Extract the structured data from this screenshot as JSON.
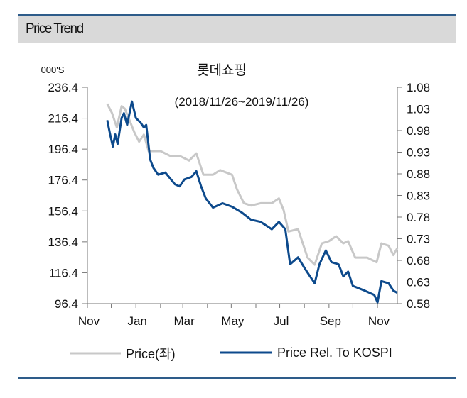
{
  "header": {
    "title": "Price Trend"
  },
  "chart_data": {
    "type": "line",
    "title": "롯데쇼핑",
    "subtitle": "(2018/11/26~2019/11/26)",
    "unit_label": "000'S",
    "x_unit": "days since 2018/11/26",
    "xlim": [
      -25,
      365
    ],
    "x_ticks": [
      -25,
      5,
      36,
      67,
      95,
      126,
      156,
      187,
      217,
      248,
      279,
      309,
      340
    ],
    "x_tick_labels": [
      {
        "x": -25,
        "label": "Nov"
      },
      {
        "x": 36,
        "label": "Jan"
      },
      {
        "x": 95,
        "label": "Mar"
      },
      {
        "x": 156,
        "label": "May"
      },
      {
        "x": 217,
        "label": "Jul"
      },
      {
        "x": 279,
        "label": "Sep"
      },
      {
        "x": 340,
        "label": "Nov"
      }
    ],
    "y_left": {
      "lim": [
        96.4,
        236.4
      ],
      "ticks": [
        "236.4",
        "216.4",
        "196.4",
        "176.4",
        "156.4",
        "136.4",
        "116.4",
        "96.4"
      ]
    },
    "y_right": {
      "lim": [
        0.58,
        1.08
      ],
      "ticks": [
        "1.08",
        "1.03",
        "0.98",
        "0.93",
        "0.88",
        "0.83",
        "0.78",
        "0.73",
        "0.68",
        "0.63",
        "0.58"
      ]
    },
    "series": [
      {
        "name": "Price(좌)",
        "axis": "left",
        "color": "#c8c8c8",
        "x": [
          0,
          6,
          12,
          18,
          22,
          28,
          34,
          40,
          46,
          52,
          67,
          79,
          91,
          103,
          112,
          121,
          133,
          142,
          157,
          163,
          172,
          181,
          193,
          207,
          216,
          222,
          228,
          240,
          252,
          261,
          270,
          279,
          288,
          297,
          303,
          312,
          327,
          339,
          345,
          354,
          360,
          365
        ],
        "y": [
          225.7,
          219.6,
          210.4,
          224.2,
          222.6,
          215.0,
          207.3,
          201.2,
          205.8,
          195.1,
          195.1,
          192.0,
          192.0,
          189.0,
          193.6,
          179.8,
          179.8,
          182.8,
          179.8,
          170.6,
          161.4,
          159.9,
          161.4,
          161.4,
          164.5,
          156.8,
          143.1,
          144.6,
          126.2,
          121.6,
          135.4,
          136.9,
          140.0,
          135.4,
          136.9,
          126.2,
          126.2,
          123.2,
          135.4,
          133.9,
          127.8,
          132.4
        ]
      },
      {
        "name": "Price Rel. To KOSPI",
        "axis": "right",
        "color": "#0d4a8c",
        "x": [
          0,
          3,
          7,
          10,
          13,
          18,
          21,
          25,
          31,
          36,
          42,
          46,
          49,
          54,
          58,
          64,
          73,
          85,
          91,
          97,
          106,
          112,
          118,
          124,
          133,
          145,
          157,
          169,
          181,
          193,
          207,
          216,
          224,
          230,
          240,
          249,
          261,
          267,
          275,
          282,
          291,
          297,
          303,
          309,
          324,
          336,
          340,
          345,
          354,
          360,
          365
        ],
        "y": [
          1.004,
          0.976,
          0.943,
          0.971,
          0.949,
          1.009,
          1.02,
          0.993,
          1.047,
          1.009,
          0.998,
          0.987,
          0.993,
          0.913,
          0.894,
          0.878,
          0.883,
          0.856,
          0.851,
          0.867,
          0.873,
          0.886,
          0.851,
          0.823,
          0.802,
          0.812,
          0.804,
          0.791,
          0.774,
          0.769,
          0.752,
          0.769,
          0.752,
          0.671,
          0.687,
          0.66,
          0.627,
          0.671,
          0.703,
          0.676,
          0.671,
          0.643,
          0.654,
          0.621,
          0.61,
          0.6,
          0.583,
          0.632,
          0.627,
          0.61,
          0.605
        ]
      }
    ],
    "legend": {
      "placement": "bottom",
      "items": [
        "Price(좌)",
        "Price Rel. To KOSPI"
      ]
    }
  }
}
